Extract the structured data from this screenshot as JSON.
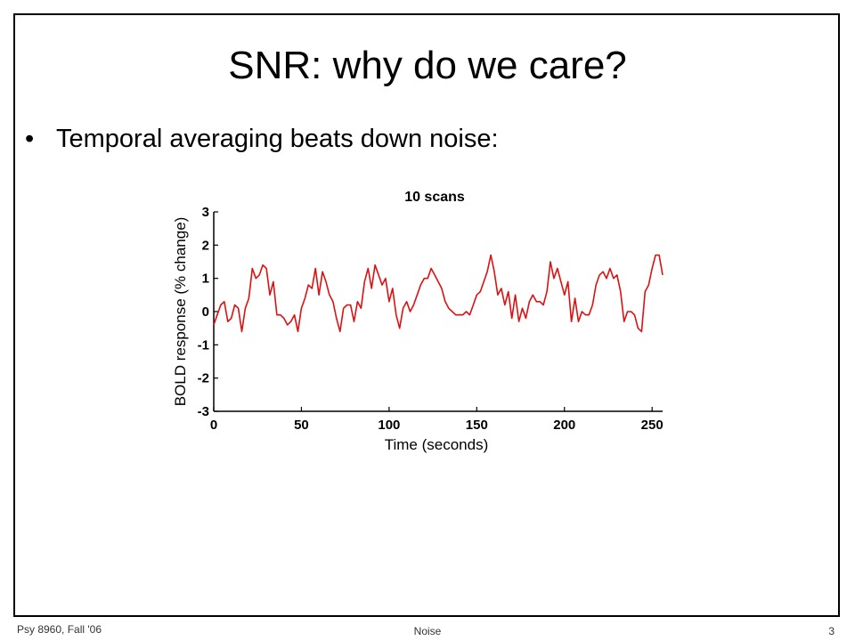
{
  "slide": {
    "title": "SNR: why do we care?",
    "bullet": "Temporal averaging beats down noise:",
    "bullet_marker": "•"
  },
  "footer": {
    "left": "Psy 8960, Fall '06",
    "center": "Noise",
    "page_number": "3"
  },
  "colors": {
    "series": "#dd1111",
    "frame": "#000000"
  },
  "chart_data": {
    "type": "line",
    "title": "10 scans",
    "xlabel": "Time (seconds)",
    "ylabel": "BOLD response (% change)",
    "xlim": [
      0,
      256
    ],
    "ylim": [
      -3,
      3
    ],
    "xticks": [
      0,
      50,
      100,
      150,
      200,
      250
    ],
    "yticks": [
      -3,
      -2,
      -1,
      0,
      1,
      2,
      3
    ],
    "grid": false,
    "series": [
      {
        "x": [
          0,
          2,
          4,
          6,
          8,
          10,
          12,
          14,
          16,
          18,
          20,
          22,
          24,
          26,
          28,
          30,
          32,
          34,
          36,
          38,
          40,
          42,
          44,
          46,
          48,
          50,
          52,
          54,
          56,
          58,
          60,
          62,
          64,
          66,
          68,
          70,
          72,
          74,
          76,
          78,
          80,
          82,
          84,
          86,
          88,
          90,
          92,
          94,
          96,
          98,
          100,
          102,
          104,
          106,
          108,
          110,
          112,
          114,
          116,
          118,
          120,
          122,
          124,
          126,
          128,
          130,
          132,
          134,
          136,
          138,
          140,
          142,
          144,
          146,
          148,
          150,
          152,
          154,
          156,
          158,
          160,
          162,
          164,
          166,
          168,
          170,
          172,
          174,
          176,
          178,
          180,
          182,
          184,
          186,
          188,
          190,
          192,
          194,
          196,
          198,
          200,
          202,
          204,
          206,
          208,
          210,
          212,
          214,
          216,
          218,
          220,
          222,
          224,
          226,
          228,
          230,
          232,
          234,
          236,
          238,
          240,
          242,
          244,
          246,
          248,
          250,
          252,
          254,
          256
        ],
        "y": [
          -0.4,
          -0.1,
          0.2,
          0.3,
          -0.3,
          -0.2,
          0.2,
          0.1,
          -0.6,
          0.1,
          0.4,
          1.3,
          1.0,
          1.1,
          1.4,
          1.3,
          0.5,
          0.9,
          -0.1,
          -0.1,
          -0.2,
          -0.4,
          -0.3,
          -0.1,
          -0.6,
          0.1,
          0.4,
          0.8,
          0.7,
          1.3,
          0.5,
          1.2,
          0.9,
          0.5,
          0.3,
          -0.2,
          -0.6,
          0.1,
          0.2,
          0.2,
          -0.3,
          0.3,
          0.1,
          0.9,
          1.3,
          0.7,
          1.4,
          1.1,
          0.8,
          1.0,
          0.3,
          0.7,
          -0.1,
          -0.5,
          0.1,
          0.3,
          0.0,
          0.2,
          0.5,
          0.8,
          1.0,
          1.0,
          1.3,
          1.1,
          0.9,
          0.7,
          0.3,
          0.1,
          0.0,
          -0.1,
          -0.1,
          -0.1,
          0.0,
          -0.1,
          0.2,
          0.5,
          0.6,
          0.9,
          1.2,
          1.7,
          1.2,
          0.5,
          0.7,
          0.2,
          0.6,
          -0.2,
          0.5,
          -0.3,
          0.1,
          -0.2,
          0.3,
          0.5,
          0.3,
          0.3,
          0.2,
          0.6,
          1.5,
          1.0,
          1.3,
          0.9,
          0.5,
          0.9,
          -0.3,
          0.4,
          -0.3,
          0.0,
          -0.1,
          -0.1,
          0.2,
          0.8,
          1.1,
          1.2,
          1.0,
          1.3,
          1.0,
          1.1,
          0.6,
          -0.3,
          0.0,
          0.0,
          -0.1,
          -0.5,
          -0.6,
          0.6,
          0.8,
          1.3,
          1.7,
          1.7,
          1.1
        ]
      }
    ]
  }
}
